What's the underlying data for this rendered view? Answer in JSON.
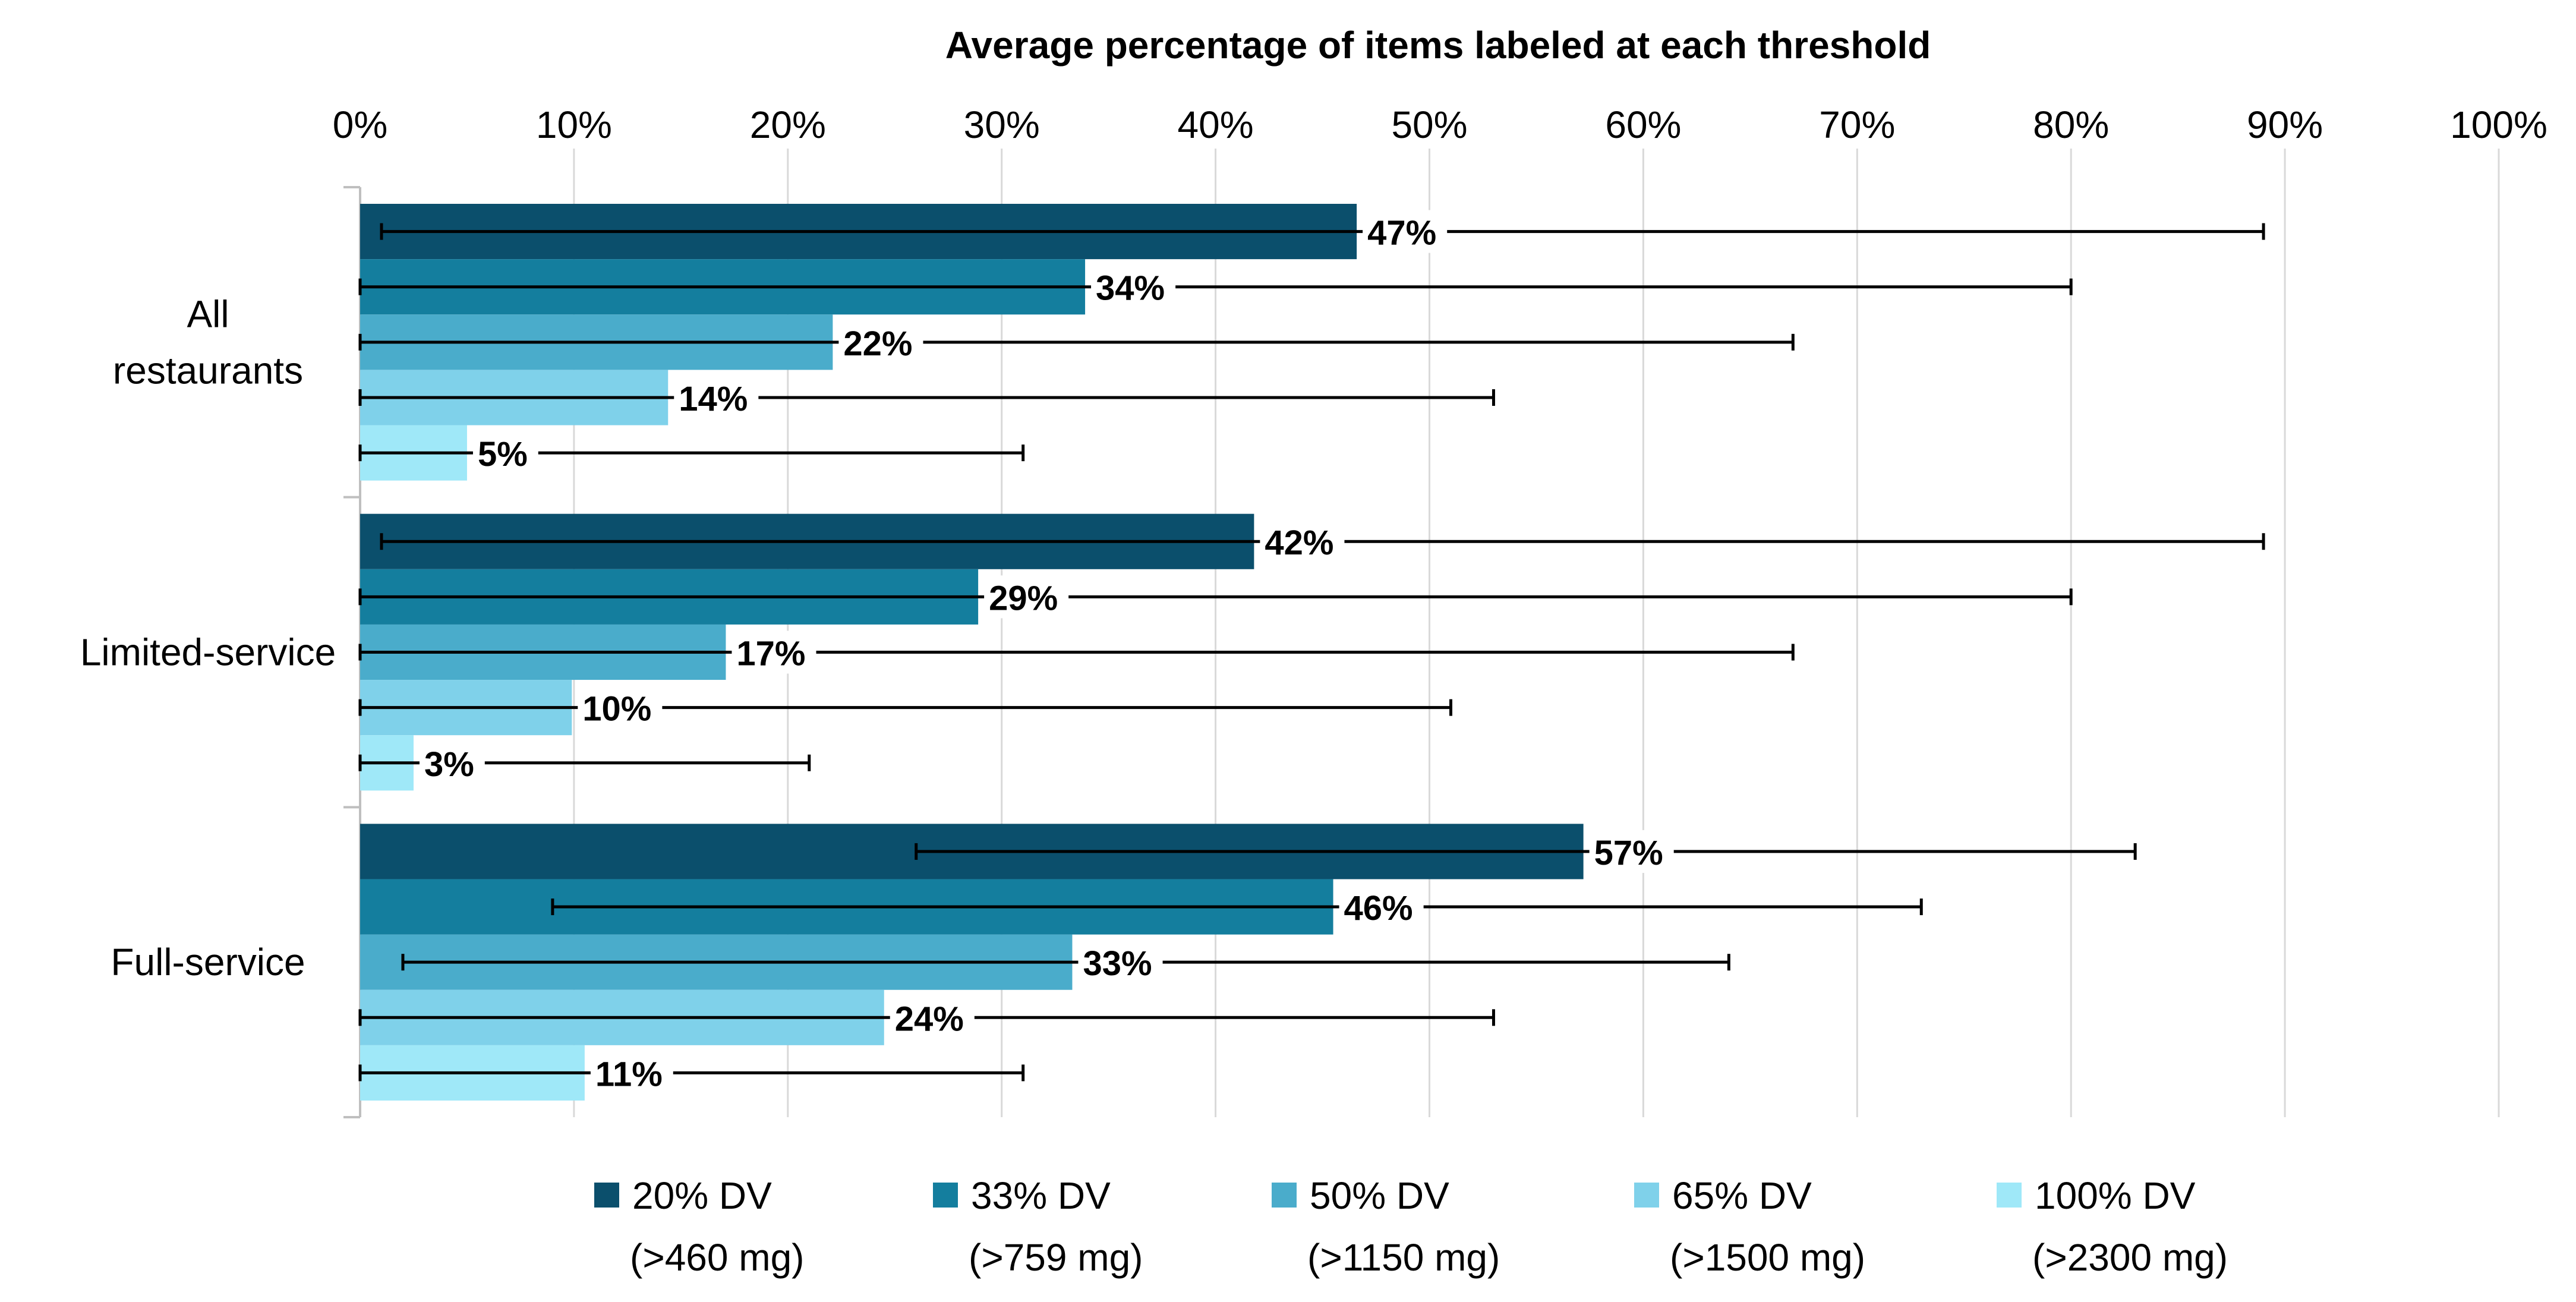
{
  "chart_data": {
    "type": "bar",
    "orientation": "horizontal",
    "title": "",
    "xlabel": "Average percentage of items labeled at each threshold",
    "ylabel": "",
    "xlim": [
      0,
      100
    ],
    "x_ticks": [
      0,
      10,
      20,
      30,
      40,
      50,
      60,
      70,
      80,
      90,
      100
    ],
    "x_tick_labels": [
      "0%",
      "10%",
      "20%",
      "30%",
      "40%",
      "50%",
      "60%",
      "70%",
      "80%",
      "90%",
      "100%"
    ],
    "grid": "vertical",
    "legend_position": "bottom",
    "categories": [
      {
        "label_lines": [
          "All",
          "restaurants"
        ]
      },
      {
        "label_lines": [
          "Limited-service"
        ]
      },
      {
        "label_lines": [
          "Full-service"
        ]
      }
    ],
    "series": [
      {
        "name_lines": [
          "20% DV",
          "(>460 mg)"
        ],
        "color": "#0b4f6c",
        "values": [
          46.6,
          41.8,
          57.2
        ],
        "labels": [
          "47%",
          "42%",
          "57%"
        ],
        "err_low": [
          1,
          1,
          26
        ],
        "err_high": [
          89,
          89,
          83
        ]
      },
      {
        "name_lines": [
          "33% DV",
          "(>759 mg)"
        ],
        "color": "#147e9e",
        "values": [
          33.9,
          28.9,
          45.5
        ],
        "labels": [
          "34%",
          "29%",
          "46%"
        ],
        "err_low": [
          0,
          0,
          9
        ],
        "err_high": [
          80,
          80,
          73
        ]
      },
      {
        "name_lines": [
          "50% DV",
          "(>1150 mg)"
        ],
        "color": "#4aaccb",
        "values": [
          22.1,
          17.1,
          33.3
        ],
        "labels": [
          "22%",
          "17%",
          "33%"
        ],
        "err_low": [
          0,
          0,
          2
        ],
        "err_high": [
          67,
          67,
          64
        ]
      },
      {
        "name_lines": [
          "65% DV",
          "(>1500 mg)"
        ],
        "color": "#7fd1ea",
        "values": [
          14.4,
          9.9,
          24.5
        ],
        "labels": [
          "14%",
          "10%",
          "24%"
        ],
        "err_low": [
          0,
          0,
          0
        ],
        "err_high": [
          53,
          51,
          53
        ]
      },
      {
        "name_lines": [
          "100% DV",
          "(>2300 mg)"
        ],
        "color": "#9fe8f8",
        "values": [
          5.0,
          2.5,
          10.5
        ],
        "labels": [
          "5%",
          "3%",
          "11%"
        ],
        "err_low": [
          0,
          0,
          0
        ],
        "err_high": [
          31,
          21,
          31
        ]
      }
    ]
  }
}
